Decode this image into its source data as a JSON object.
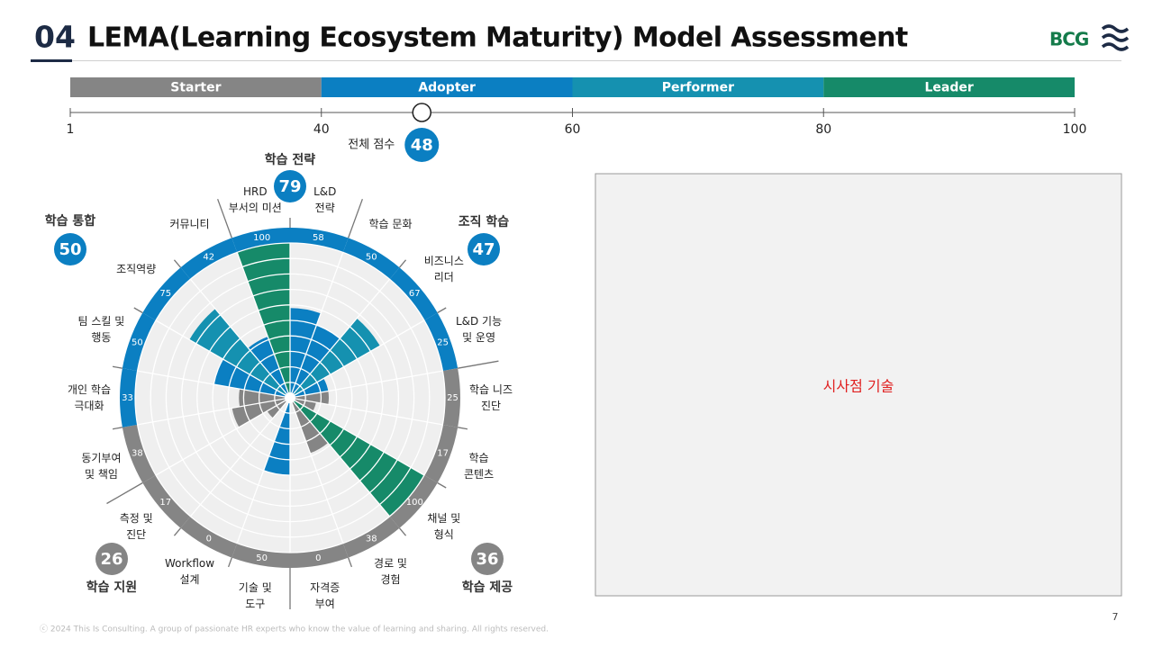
{
  "header": {
    "number": "04",
    "title": "LEMA(Learning Ecosystem Maturity) Model Assessment",
    "logo": "BCG"
  },
  "scale": {
    "bands": [
      {
        "name": "Starter",
        "color": "#858585"
      },
      {
        "name": "Adopter",
        "color": "#0b7fc2"
      },
      {
        "name": "Performer",
        "color": "#1591b0"
      },
      {
        "name": "Leader",
        "color": "#168a69"
      }
    ],
    "ticks": [
      1,
      40,
      60,
      80,
      100
    ],
    "score_label": "전체 점수",
    "score": 48,
    "score_color": "#0b7fc2"
  },
  "chart_data": {
    "type": "polar-bar",
    "ylim": [
      0,
      100
    ],
    "groups": [
      {
        "name": "학습 전략",
        "score": 79,
        "color": "#0b7fc2",
        "categories": [
          "HRD\n부서의 미션",
          "L&D\n전략"
        ],
        "values": [
          100,
          58
        ],
        "colors": [
          "#168a69",
          "#0b7fc2"
        ],
        "ring_colors": [
          "#0b7fc2",
          "#0b7fc2"
        ]
      },
      {
        "name": "조직 학습",
        "score": 47,
        "color": "#0b7fc2",
        "categories": [
          "학습 문화",
          "비즈니스\n리더",
          "L&D 기능\n및 운영"
        ],
        "values": [
          50,
          67,
          25
        ],
        "colors": [
          "#0b7fc2",
          "#1591b0",
          "#0b7fc2"
        ],
        "ring_colors": [
          "#0b7fc2",
          "#0b7fc2",
          "#0b7fc2"
        ]
      },
      {
        "name": "학습 제공",
        "score": 36,
        "color": "#858585",
        "categories": [
          "학습 니즈\n진단",
          "학습\n콘텐츠",
          "채널 및\n형식",
          "경로 및\n경험",
          "자격증\n부여"
        ],
        "values": [
          25,
          17,
          100,
          38,
          0
        ],
        "colors": [
          "#858585",
          "#858585",
          "#168a69",
          "#858585",
          "#858585"
        ],
        "ring_colors": [
          "#858585",
          "#858585",
          "#858585",
          "#858585",
          "#858585"
        ]
      },
      {
        "name": "학습 지원",
        "score": 26,
        "color": "#858585",
        "categories": [
          "기술 및\n도구",
          "Workflow\n설계",
          "측정 및\n진단"
        ],
        "values": [
          50,
          0,
          17
        ],
        "colors": [
          "#0b7fc2",
          "#858585",
          "#858585"
        ],
        "ring_colors": [
          "#858585",
          "#858585",
          "#858585"
        ]
      },
      {
        "name": "학습 통합",
        "score": 50,
        "color": "#0b7fc2",
        "categories": [
          "동기부여\n및 책임",
          "개인 학습\n극대화",
          "팀 스킬 및\n행동",
          "조직역량",
          "커뮤니티"
        ],
        "values": [
          38,
          33,
          50,
          75,
          42
        ],
        "colors": [
          "#858585",
          "#858585",
          "#0b7fc2",
          "#1591b0",
          "#0b7fc2"
        ],
        "ring_colors": [
          "#858585",
          "#0b7fc2",
          "#0b7fc2",
          "#0b7fc2",
          "#0b7fc2"
        ]
      }
    ]
  },
  "notes_box": {
    "text": "시사점 기술"
  },
  "footer": {
    "copyright": "ⓒ 2024 This Is Consulting. A group of passionate HR experts who know the value of learning and sharing. All rights reserved.",
    "page": 7
  }
}
